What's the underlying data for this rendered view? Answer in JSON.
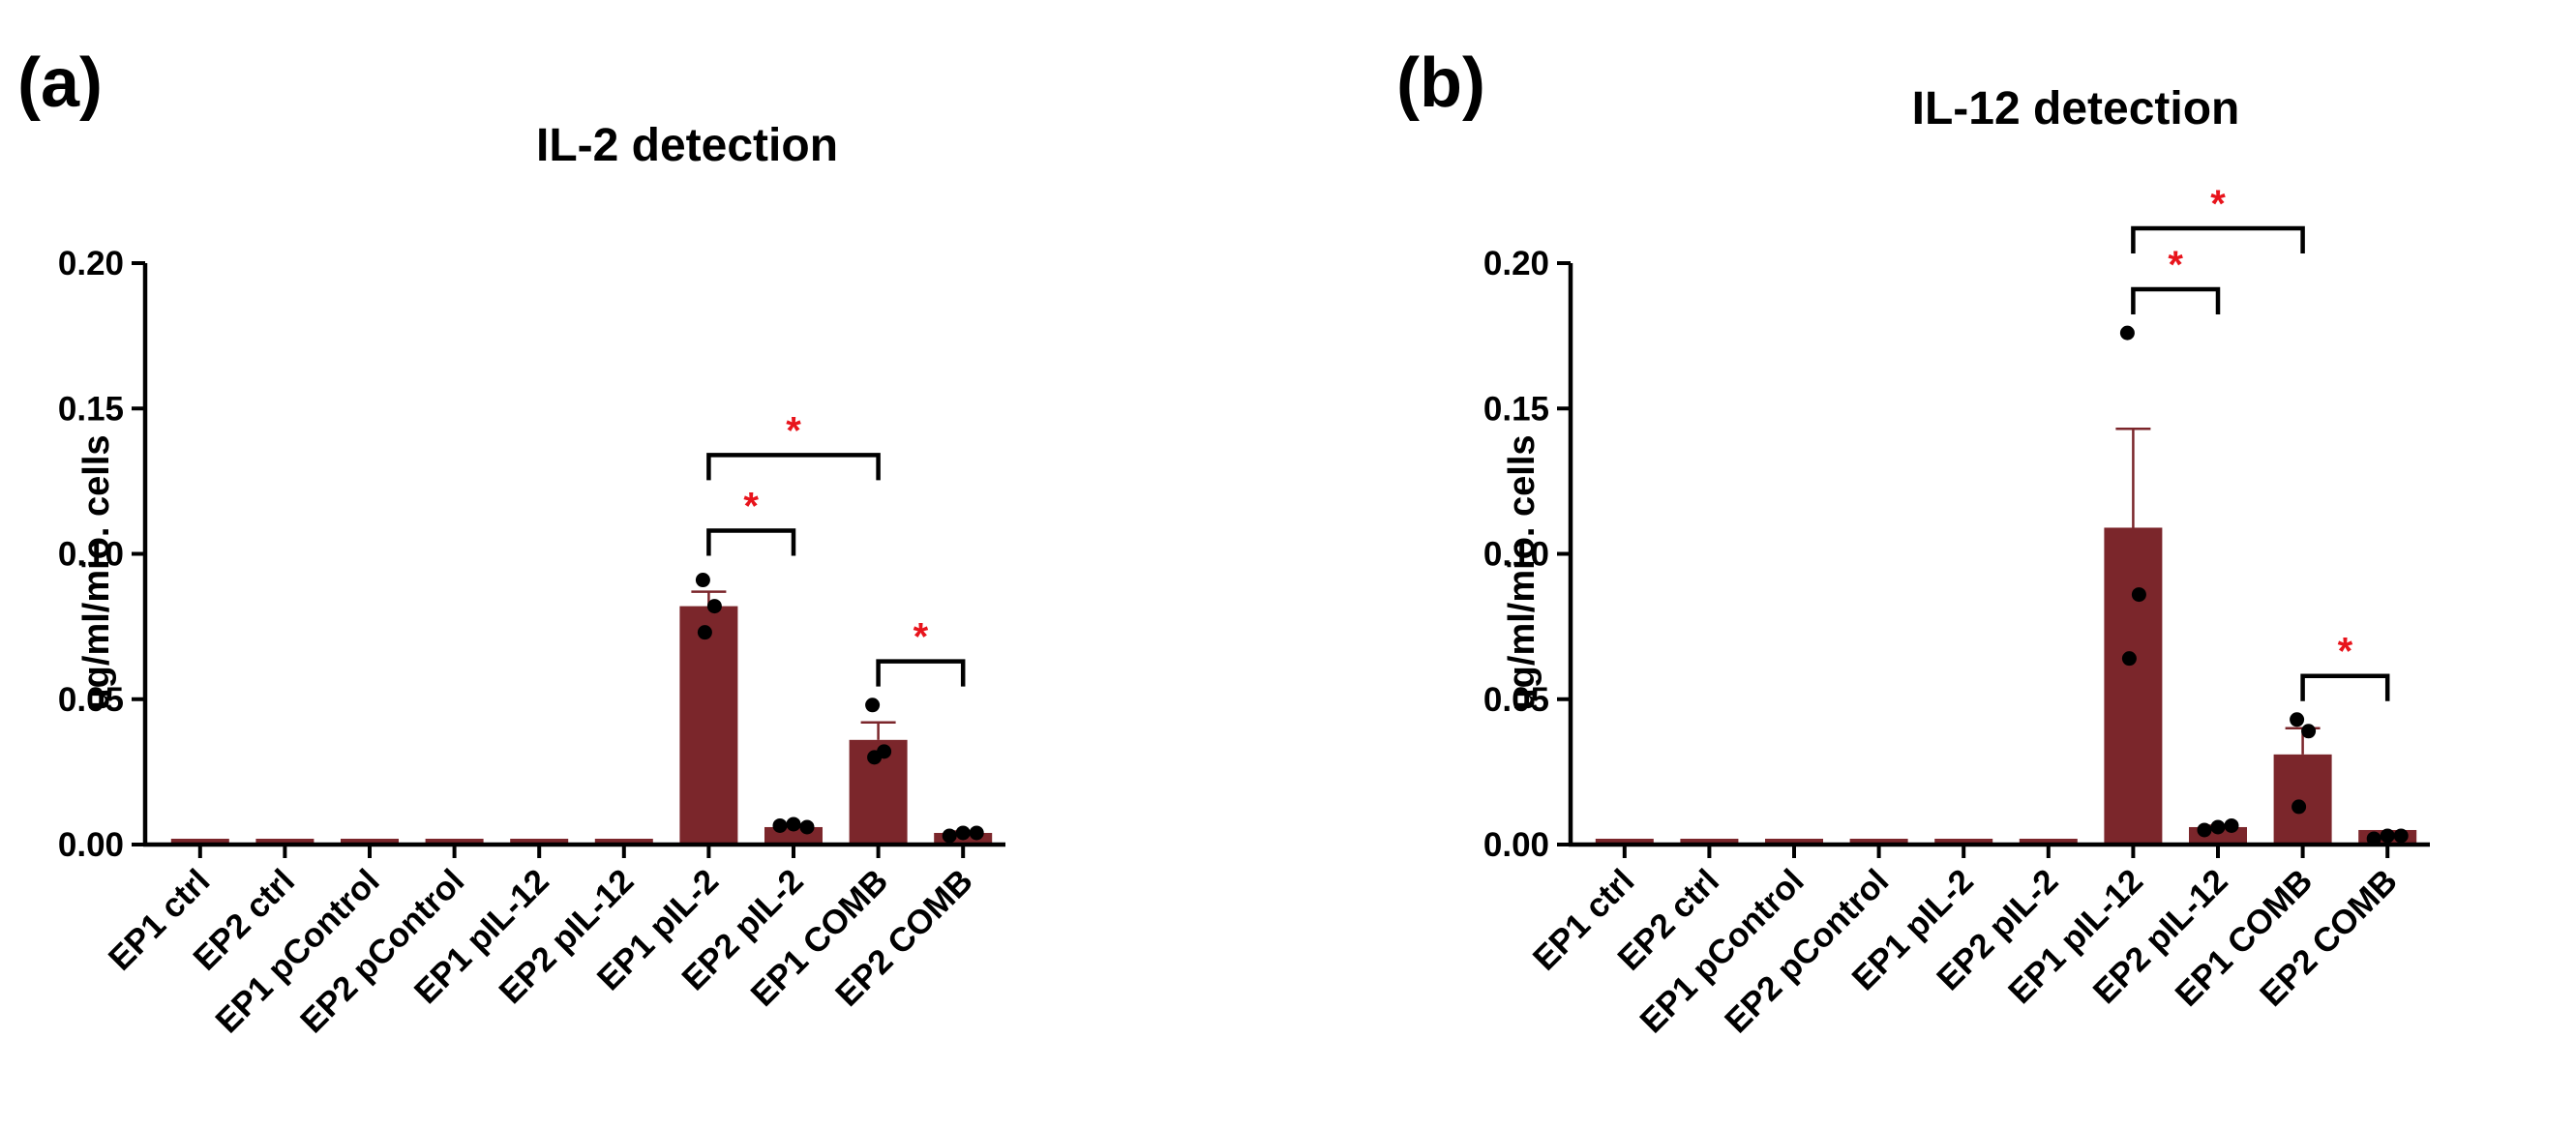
{
  "chart_data": [
    {
      "panel_label": "(a)",
      "type": "bar",
      "title": "IL-2 detection",
      "xlabel": "",
      "ylabel": "ug/ml/mio. cells",
      "ylim": [
        0,
        0.2
      ],
      "yticks": [
        "0.00",
        "0.05",
        "0.10",
        "0.15",
        "0.20"
      ],
      "ytick_values": [
        0,
        0.05,
        0.1,
        0.15,
        0.2
      ],
      "categories": [
        "EP1 ctrl",
        "EP2 ctrl",
        "EP1 pControl",
        "EP2 pControl",
        "EP1 pIL-12",
        "EP2 pIL-12",
        "EP1 pIL-2",
        "EP2 pIL-2",
        "EP1 COMB",
        "EP2 COMB"
      ],
      "values": [
        0.002,
        0.002,
        0.002,
        0.002,
        0.002,
        0.002,
        0.082,
        0.006,
        0.036,
        0.004
      ],
      "error": [
        0,
        0,
        0,
        0,
        0,
        0,
        0.005,
        0.0005,
        0.006,
        0.0005
      ],
      "points": [
        [],
        [],
        [],
        [],
        [],
        [],
        [
          0.091,
          0.082,
          0.073
        ],
        [
          0.0065,
          0.007,
          0.006
        ],
        [
          0.048,
          0.032,
          0.03
        ],
        [
          0.003,
          0.004,
          0.004
        ]
      ],
      "bar_color": "#7b262b",
      "significance": [
        {
          "from": 6,
          "to": 7,
          "y": 0.108,
          "label": "*"
        },
        {
          "from": 6,
          "to": 8,
          "y": 0.134,
          "label": "*"
        },
        {
          "from": 8,
          "to": 9,
          "y": 0.063,
          "label": "*"
        }
      ],
      "significance_color": "#e8141c"
    },
    {
      "panel_label": "(b)",
      "type": "bar",
      "title": "IL-12 detection",
      "xlabel": "",
      "ylabel": "ug/ml/mio. cells",
      "ylim": [
        0,
        0.2
      ],
      "yticks": [
        "0.00",
        "0.05",
        "0.10",
        "0.15",
        "0.20"
      ],
      "ytick_values": [
        0,
        0.05,
        0.1,
        0.15,
        0.2
      ],
      "categories": [
        "EP1 ctrl",
        "EP2 ctrl",
        "EP1 pControl",
        "EP2 pControl",
        "EP1 pIL-2",
        "EP2 pIL-2",
        "EP1 pIL-12",
        "EP2 pIL-12",
        "EP1 COMB",
        "EP2 COMB"
      ],
      "values": [
        0.002,
        0.002,
        0.002,
        0.002,
        0.002,
        0.002,
        0.109,
        0.006,
        0.031,
        0.005
      ],
      "error": [
        0,
        0,
        0,
        0,
        0,
        0,
        0.034,
        0.0005,
        0.009,
        0
      ],
      "points": [
        [],
        [],
        [],
        [],
        [],
        [],
        [
          0.176,
          0.086,
          0.064
        ],
        [
          0.005,
          0.006,
          0.0065
        ],
        [
          0.043,
          0.039,
          0.013
        ],
        [
          0.002,
          0.003,
          0.003
        ]
      ],
      "bar_color": "#7b262b",
      "significance": [
        {
          "from": 6,
          "to": 7,
          "y": 0.191,
          "label": "*"
        },
        {
          "from": 6,
          "to": 8,
          "y": 0.212,
          "label": "*"
        },
        {
          "from": 8,
          "to": 9,
          "y": 0.058,
          "label": "*"
        }
      ],
      "significance_color": "#e8141c"
    }
  ]
}
